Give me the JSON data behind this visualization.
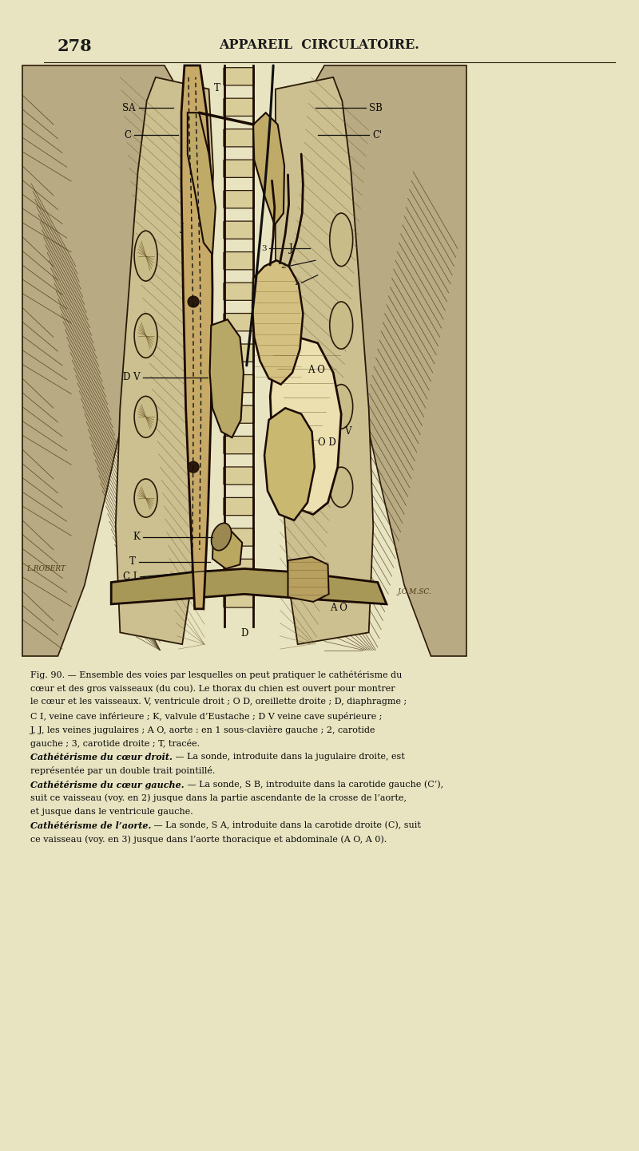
{
  "bg_color": "#e8e3c0",
  "page_number": "278",
  "header_title": "APPAREIL  CIRCULATOIRE.",
  "caption_lines": [
    [
      "normal",
      "Fig. 90. — Ensemble des voies par lesquelles on peut pratiquer le cathétérisme du"
    ],
    [
      "normal",
      "cœur et des gros vaisseaux (du cou). Le thorax du chien est ouvert pour montrer"
    ],
    [
      "normal",
      "le cœur et les vaisseaux. V, ventricule droit ; O D, oreillette droite ; D, diaphragme ;"
    ],
    [
      "normal",
      "C I, veine cave inférieure ; K, valvule d’Eustache ; D V veine cave supérieure ;"
    ],
    [
      "normal",
      "J, J, les veines jugulaires ; A O, aorte : en 1 sous-clavière gauche ; 2, carotide"
    ],
    [
      "normal",
      "gauche ; 3, carotide droite ; T, tracée."
    ],
    [
      "italic",
      "Cathétérisme du cœur droit.",
      " — La sonde, introduite dans la jugulaire droite, est"
    ],
    [
      "normal",
      "représentée par un double trait pointillé."
    ],
    [
      "italic",
      "Cathétérisme du cœur gauche.",
      " — La sonde, S B, introduite dans la carotide gauche (C’),"
    ],
    [
      "normal",
      "suit ce vaisseau (voy. en 2) jusque dans la partie ascendante de la crosse de l’aorte,"
    ],
    [
      "normal",
      "et jusque dans le ventricule gauche."
    ],
    [
      "italic",
      "Cathétérisme de l’aorte.",
      " — La sonde, S A, introduite dans la carotide droite (C), suit"
    ],
    [
      "normal",
      "ce vaisseau (voy. en 3) jusque dans l’aorte thoracique et abdominale (A O, A 0)."
    ]
  ],
  "fig_width": 8.0,
  "fig_height": 14.42,
  "dpi": 100
}
